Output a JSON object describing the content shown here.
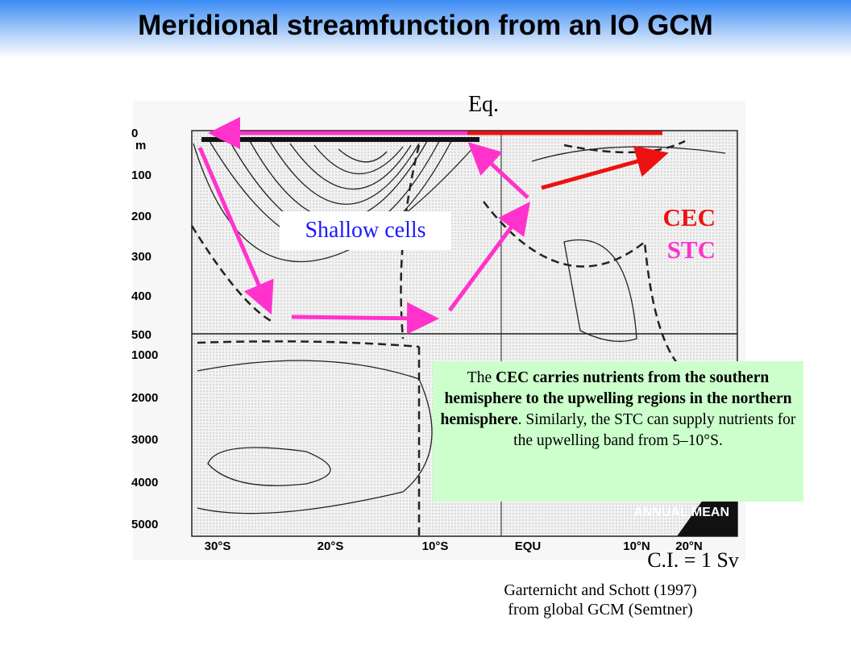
{
  "header": {
    "title": "Meridional streamfunction from an IO GCM"
  },
  "figure": {
    "equator_label": "Eq.",
    "depth_labels_upper": [
      "0",
      "m",
      "100",
      "200",
      "300",
      "400",
      "500"
    ],
    "depth_labels_lower": [
      "1000",
      "2000",
      "3000",
      "4000",
      "5000"
    ],
    "latitude_labels": [
      "30°S",
      "20°S",
      "10°S",
      "EQU",
      "10°N",
      "20°N"
    ],
    "panel_label": "ANNUAL MEAN",
    "cell_labels": {
      "cec": "CEC",
      "stc": "STC",
      "shallow": "Shallow cells"
    },
    "contour_interval": "C.I. = 1 Sv"
  },
  "note": {
    "runs": [
      {
        "text": "The ",
        "bold": false
      },
      {
        "text": "CEC carries nutrients from the southern hemisphere to the upwelling regions in the northern hemisphere",
        "bold": true
      },
      {
        "text": ". Similarly, the STC can supply nutrients for the upwelling band from 5–10°S.",
        "bold": false
      }
    ]
  },
  "citation": {
    "lines": [
      "Garternicht and Schott (1997)",
      "from global GCM (Semtner)"
    ]
  }
}
